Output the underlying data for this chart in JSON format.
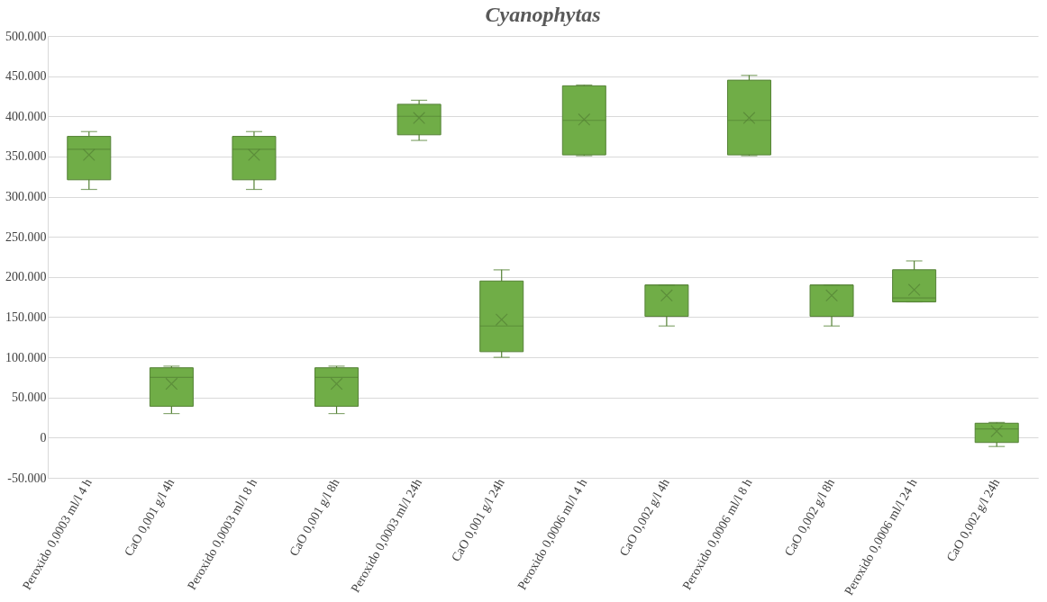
{
  "chart_data": {
    "type": "box",
    "title": "Cyanophytas",
    "categories": [
      "Peroxido 0,0003 ml/l 4 h",
      "CaO 0,001 g/l 4h",
      "Peroxido 0,0003 ml/l 8 h",
      "CaO 0,001 g/l 8h",
      "Peroxido 0,0003 ml/l 24h",
      "CaO 0,001 g/l 24h",
      "Peroxido 0,0006 ml/l 4 h",
      "CaO 0,002 g/l 4h",
      "Peroxido 0,0006 ml/l 8 h",
      "CaO 0,002 g/l 8h",
      "Peroxido 0,0006 ml/l 24 h",
      "CaO 0,002 g/l 24h"
    ],
    "series": [
      {
        "color": "#70ad47",
        "boxes": [
          {
            "low": 309000,
            "q1": 321000,
            "median": 359000,
            "q3": 375000,
            "high": 381000,
            "mean": 352000
          },
          {
            "low": 30000,
            "q1": 39000,
            "median": 75000,
            "q3": 87000,
            "high": 89000,
            "mean": 67000
          },
          {
            "low": 309000,
            "q1": 321000,
            "median": 359000,
            "q3": 375000,
            "high": 381000,
            "mean": 352000
          },
          {
            "low": 30000,
            "q1": 39000,
            "median": 75000,
            "q3": 87000,
            "high": 89000,
            "mean": 67000
          },
          {
            "low": 370000,
            "q1": 377000,
            "median": 400000,
            "q3": 415000,
            "high": 420000,
            "mean": 398000
          },
          {
            "low": 100000,
            "q1": 107000,
            "median": 139000,
            "q3": 195000,
            "high": 209000,
            "mean": 147000
          },
          {
            "low": 351000,
            "q1": 352000,
            "median": 395000,
            "q3": 438000,
            "high": 439000,
            "mean": 396000
          },
          {
            "low": 139000,
            "q1": 151000,
            "median": 190000,
            "q3": 190000,
            "high": 190000,
            "mean": 177000
          },
          {
            "low": 351000,
            "q1": 352000,
            "median": 395000,
            "q3": 445000,
            "high": 451000,
            "mean": 398000
          },
          {
            "low": 139000,
            "q1": 151000,
            "median": 190000,
            "q3": 190000,
            "high": 190000,
            "mean": 177000
          },
          {
            "low": 169000,
            "q1": 169000,
            "median": 174000,
            "q3": 209000,
            "high": 220000,
            "mean": 184000
          },
          {
            "low": -11000,
            "q1": -6000,
            "median": 11000,
            "q3": 18000,
            "high": 19000,
            "mean": 8000
          }
        ]
      }
    ],
    "ylim": [
      -50000,
      500000
    ],
    "yticks": [
      {
        "value": -50000,
        "label": "-50.000"
      },
      0,
      {
        "value": 50000,
        "label": "50.000"
      },
      {
        "value": 100000,
        "label": "100.000"
      },
      {
        "value": 150000,
        "label": "150.000"
      },
      {
        "value": 200000,
        "label": "200.000"
      },
      {
        "value": 250000,
        "label": "250.000"
      },
      {
        "value": 300000,
        "label": "300.000"
      },
      {
        "value": 350000,
        "label": "350.000"
      },
      {
        "value": 400000,
        "label": "400.000"
      },
      {
        "value": 450000,
        "label": "450.000"
      },
      {
        "value": 500000,
        "label": "500.000"
      }
    ],
    "grid": "y"
  }
}
